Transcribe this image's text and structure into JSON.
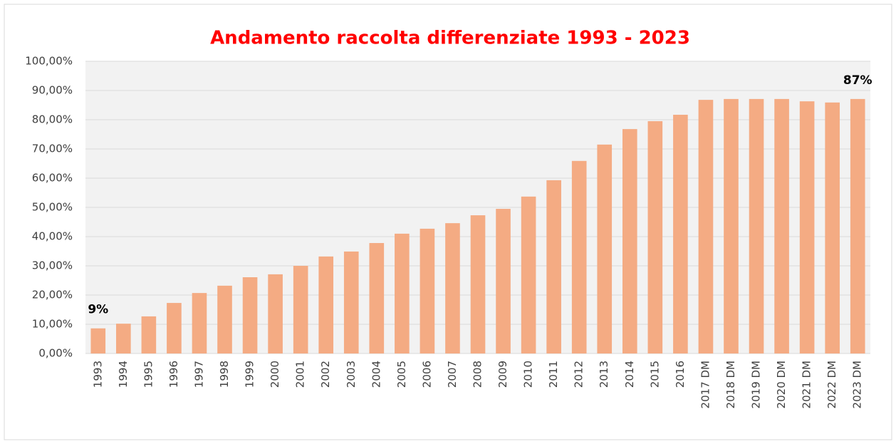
{
  "chart_data": {
    "type": "bar",
    "title": "Andamento raccolta differenziate 1993 - 2023",
    "categories": [
      "1993",
      "1994",
      "1995",
      "1996",
      "1997",
      "1998",
      "1999",
      "2000",
      "2001",
      "2002",
      "2003",
      "2004",
      "2005",
      "2006",
      "2007",
      "2008",
      "2009",
      "2010",
      "2011",
      "2012",
      "2013",
      "2014",
      "2015",
      "2016",
      "2017 DM",
      "2018 DM",
      "2019 DM",
      "2020 DM",
      "2021 DM",
      "2022 DM",
      "2023 DM"
    ],
    "values": [
      8.6,
      10.2,
      12.7,
      17.3,
      20.7,
      23.2,
      26.1,
      27.1,
      30.0,
      33.2,
      34.9,
      37.8,
      41.0,
      42.7,
      44.6,
      47.3,
      49.5,
      53.7,
      59.3,
      65.9,
      71.5,
      76.8,
      79.5,
      81.7,
      86.8,
      87.1,
      87.1,
      87.1,
      86.3,
      85.9,
      87.1
    ],
    "value_labels": [
      "9%",
      null,
      null,
      null,
      null,
      null,
      null,
      null,
      null,
      null,
      null,
      null,
      null,
      null,
      null,
      null,
      null,
      null,
      null,
      null,
      null,
      null,
      null,
      null,
      null,
      null,
      null,
      null,
      null,
      null,
      "87%"
    ],
    "color": "#f4ab83",
    "ylim": [
      0,
      100
    ],
    "yticks": [
      {
        "value": 0,
        "label": "0,00%"
      },
      {
        "value": 10,
        "label": "10,00%"
      },
      {
        "value": 20,
        "label": "20,00%"
      },
      {
        "value": 30,
        "label": "30,00%"
      },
      {
        "value": 40,
        "label": "40,00%"
      },
      {
        "value": 50,
        "label": "50,00%"
      },
      {
        "value": 60,
        "label": "60,00%"
      },
      {
        "value": 70,
        "label": "70,00%"
      },
      {
        "value": 80,
        "label": "80,00%"
      },
      {
        "value": 90,
        "label": "90,00%"
      },
      {
        "value": 100,
        "label": "100,00%"
      }
    ],
    "grid": true
  }
}
